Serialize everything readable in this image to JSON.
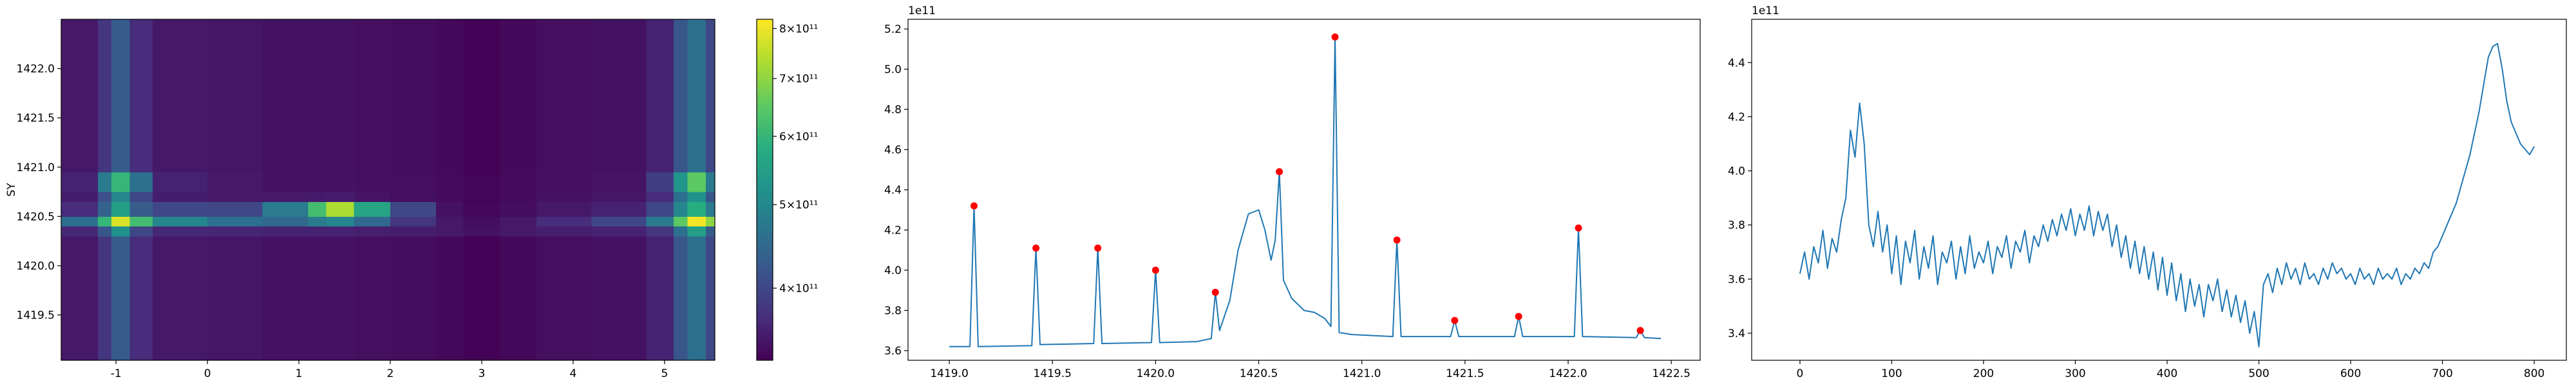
{
  "chart_data": [
    {
      "type": "heatmap",
      "ylabel": "SY",
      "colormap": "viridis",
      "color_scale": "log",
      "clim": [
        330000000000.0,
        820000000000.0
      ],
      "cticks": [
        {
          "value": 400000000000.0,
          "label": "4×10¹¹"
        },
        {
          "value": 500000000000.0,
          "label": "5×10¹¹"
        },
        {
          "value": 600000000000.0,
          "label": "6×10¹¹"
        },
        {
          "value": 700000000000.0,
          "label": "7×10¹¹"
        },
        {
          "value": 800000000000.0,
          "label": "8×10¹¹"
        }
      ],
      "xlim": [
        -1.6,
        5.55
      ],
      "xticks": [
        -1,
        0,
        1,
        2,
        3,
        4,
        5
      ],
      "ylim": [
        1419.04,
        1422.5
      ],
      "yticks": [
        {
          "value": 1419.5,
          "label": "1419.5"
        },
        {
          "value": 1420,
          "label": "1420.0"
        },
        {
          "value": 1420.5,
          "label": "1420.5"
        },
        {
          "value": 1421,
          "label": "1421.0"
        },
        {
          "value": 1421.5,
          "label": "1421.5"
        },
        {
          "value": 1422,
          "label": "1422.0"
        }
      ],
      "x_edges": [
        -1.6,
        -1.2,
        -1.05,
        -0.85,
        -0.6,
        0,
        0.6,
        1.1,
        1.3,
        1.6,
        2.0,
        2.5,
        2.8,
        3.2,
        3.6,
        4.2,
        4.8,
        5.1,
        5.25,
        5.45,
        5.55
      ],
      "y_edges": [
        1419.04,
        1419.9,
        1420.3,
        1420.4,
        1420.5,
        1420.65,
        1420.75,
        1420.95,
        1421.5,
        1422.5
      ],
      "z": [
        [
          350000000000.0,
          380000000000.0,
          430000000000.0,
          370000000000.0,
          350000000000.0,
          348000000000.0,
          345000000000.0,
          345000000000.0,
          345000000000.0,
          342000000000.0,
          340000000000.0,
          337000000000.0,
          332000000000.0,
          337000000000.0,
          342000000000.0,
          345000000000.0,
          360000000000.0,
          420000000000.0,
          460000000000.0,
          400000000000.0
        ],
        [
          350000000000.0,
          380000000000.0,
          430000000000.0,
          370000000000.0,
          350000000000.0,
          348000000000.0,
          345000000000.0,
          345000000000.0,
          345000000000.0,
          342000000000.0,
          340000000000.0,
          337000000000.0,
          332000000000.0,
          337000000000.0,
          342000000000.0,
          345000000000.0,
          360000000000.0,
          420000000000.0,
          460000000000.0,
          400000000000.0
        ],
        [
          365000000000.0,
          420000000000.0,
          520000000000.0,
          400000000000.0,
          365000000000.0,
          362000000000.0,
          360000000000.0,
          360000000000.0,
          360000000000.0,
          357000000000.0,
          355000000000.0,
          350000000000.0,
          345000000000.0,
          350000000000.0,
          356000000000.0,
          360000000000.0,
          380000000000.0,
          460000000000.0,
          550000000000.0,
          430000000000.0
        ],
        [
          460000000000.0,
          600000000000.0,
          780000000000.0,
          620000000000.0,
          500000000000.0,
          460000000000.0,
          450000000000.0,
          480000000000.0,
          500000000000.0,
          450000000000.0,
          380000000000.0,
          350000000000.0,
          340000000000.0,
          350000000000.0,
          370000000000.0,
          400000000000.0,
          480000000000.0,
          650000000000.0,
          810000000000.0,
          700000000000.0
        ],
        [
          370000000000.0,
          440000000000.0,
          550000000000.0,
          430000000000.0,
          400000000000.0,
          400000000000.0,
          480000000000.0,
          620000000000.0,
          730000000000.0,
          560000000000.0,
          400000000000.0,
          345000000000.0,
          335000000000.0,
          340000000000.0,
          350000000000.0,
          360000000000.0,
          400000000000.0,
          500000000000.0,
          580000000000.0,
          480000000000.0
        ],
        [
          355000000000.0,
          410000000000.0,
          500000000000.0,
          400000000000.0,
          355000000000.0,
          350000000000.0,
          350000000000.0,
          352000000000.0,
          355000000000.0,
          347000000000.0,
          342000000000.0,
          338000000000.0,
          333000000000.0,
          338000000000.0,
          344000000000.0,
          348000000000.0,
          370000000000.0,
          460000000000.0,
          520000000000.0,
          420000000000.0
        ],
        [
          360000000000.0,
          480000000000.0,
          600000000000.0,
          460000000000.0,
          360000000000.0,
          350000000000.0,
          346000000000.0,
          346000000000.0,
          346000000000.0,
          343000000000.0,
          341000000000.0,
          338000000000.0,
          333000000000.0,
          338000000000.0,
          343000000000.0,
          347000000000.0,
          390000000000.0,
          530000000000.0,
          650000000000.0,
          480000000000.0
        ],
        [
          350000000000.0,
          380000000000.0,
          430000000000.0,
          370000000000.0,
          350000000000.0,
          348000000000.0,
          345000000000.0,
          345000000000.0,
          345000000000.0,
          342000000000.0,
          340000000000.0,
          337000000000.0,
          332000000000.0,
          337000000000.0,
          342000000000.0,
          345000000000.0,
          360000000000.0,
          420000000000.0,
          460000000000.0,
          400000000000.0
        ],
        [
          350000000000.0,
          380000000000.0,
          430000000000.0,
          370000000000.0,
          350000000000.0,
          348000000000.0,
          345000000000.0,
          345000000000.0,
          345000000000.0,
          342000000000.0,
          340000000000.0,
          337000000000.0,
          332000000000.0,
          337000000000.0,
          342000000000.0,
          345000000000.0,
          360000000000.0,
          420000000000.0,
          460000000000.0,
          400000000000.0
        ]
      ]
    },
    {
      "type": "line",
      "y_offset_label": "1e11",
      "xlim": [
        1418.8,
        1422.64
      ],
      "xticks": [
        {
          "value": 1419,
          "label": "1419.0"
        },
        1419.5,
        {
          "value": 1420,
          "label": "1420.0"
        },
        1420.5,
        {
          "value": 1421,
          "label": "1421.0"
        },
        1421.5,
        {
          "value": 1422,
          "label": "1422.0"
        },
        1422.5
      ],
      "ylim": [
        3.552,
        5.248
      ],
      "yticks": [
        3.6,
        3.8,
        {
          "value": 4,
          "label": "4.0"
        },
        4.2,
        4.4,
        4.6,
        4.8,
        {
          "value": 5,
          "label": "5.0"
        },
        5.2
      ],
      "series": [
        {
          "color": "#1f77b4",
          "x": [
            1419.0,
            1419.1,
            1419.12,
            1419.14,
            1419.4,
            1419.42,
            1419.44,
            1419.7,
            1419.72,
            1419.74,
            1419.98,
            1420.0,
            1420.02,
            1420.2,
            1420.27,
            1420.29,
            1420.31,
            1420.36,
            1420.4,
            1420.45,
            1420.5,
            1420.53,
            1420.56,
            1420.58,
            1420.6,
            1420.62,
            1420.66,
            1420.72,
            1420.77,
            1420.82,
            1420.85,
            1420.87,
            1420.89,
            1420.95,
            1421.15,
            1421.17,
            1421.19,
            1421.43,
            1421.45,
            1421.47,
            1421.74,
            1421.76,
            1421.78,
            1422.03,
            1422.05,
            1422.07,
            1422.33,
            1422.35,
            1422.37,
            1422.45
          ],
          "values": [
            3.62,
            3.62,
            4.32,
            3.62,
            3.625,
            4.11,
            3.63,
            3.635,
            4.11,
            3.635,
            3.64,
            4.0,
            3.64,
            3.645,
            3.66,
            3.89,
            3.7,
            3.85,
            4.1,
            4.28,
            4.3,
            4.2,
            4.05,
            4.15,
            4.49,
            3.95,
            3.86,
            3.8,
            3.79,
            3.76,
            3.72,
            5.16,
            3.69,
            3.68,
            3.67,
            4.15,
            3.67,
            3.67,
            3.75,
            3.67,
            3.67,
            3.77,
            3.67,
            3.67,
            4.21,
            3.67,
            3.665,
            3.7,
            3.665,
            3.66
          ]
        },
        {
          "kind": "scatter",
          "color": "#ff0000",
          "x": [
            1419.12,
            1419.42,
            1419.72,
            1420.0,
            1420.29,
            1420.6,
            1420.87,
            1421.17,
            1421.45,
            1421.76,
            1422.05,
            1422.35
          ],
          "values": [
            4.32,
            4.11,
            4.11,
            4.0,
            3.89,
            4.49,
            5.16,
            4.15,
            3.75,
            3.77,
            4.21,
            3.7
          ]
        }
      ]
    },
    {
      "type": "line",
      "y_offset_label": "1e11",
      "xlim": [
        -52.6,
        835
      ],
      "xticks": [
        0,
        100,
        200,
        300,
        400,
        500,
        600,
        700,
        800
      ],
      "ylim": [
        3.3,
        4.56
      ],
      "yticks": [
        3.4,
        3.6,
        3.8,
        {
          "value": 4,
          "label": "4.0"
        },
        4.2,
        4.4
      ],
      "series": [
        {
          "color": "#1f77b4",
          "x": [
            0,
            5,
            10,
            15,
            20,
            25,
            30,
            35,
            40,
            45,
            50,
            55,
            60,
            65,
            70,
            75,
            80,
            85,
            90,
            95,
            100,
            105,
            110,
            115,
            120,
            125,
            130,
            135,
            140,
            145,
            150,
            155,
            160,
            165,
            170,
            175,
            180,
            185,
            190,
            195,
            200,
            205,
            210,
            215,
            220,
            225,
            230,
            235,
            240,
            245,
            250,
            255,
            260,
            265,
            270,
            275,
            280,
            285,
            290,
            295,
            300,
            305,
            310,
            315,
            320,
            325,
            330,
            335,
            340,
            345,
            350,
            355,
            360,
            365,
            370,
            375,
            380,
            385,
            390,
            395,
            400,
            405,
            410,
            415,
            420,
            425,
            430,
            435,
            440,
            445,
            450,
            455,
            460,
            465,
            470,
            475,
            480,
            485,
            490,
            495,
            500,
            505,
            510,
            515,
            520,
            525,
            530,
            535,
            540,
            545,
            550,
            555,
            560,
            565,
            570,
            575,
            580,
            585,
            590,
            595,
            600,
            605,
            610,
            615,
            620,
            625,
            630,
            635,
            640,
            645,
            650,
            655,
            660,
            665,
            670,
            675,
            680,
            685,
            690,
            695,
            700,
            705,
            710,
            715,
            720,
            725,
            730,
            735,
            740,
            745,
            750,
            755,
            760,
            765,
            770,
            775,
            780,
            785,
            790,
            795,
            800
          ],
          "values": [
            3.62,
            3.7,
            3.6,
            3.72,
            3.66,
            3.78,
            3.64,
            3.75,
            3.7,
            3.82,
            3.9,
            4.15,
            4.05,
            4.25,
            4.1,
            3.8,
            3.72,
            3.85,
            3.7,
            3.8,
            3.62,
            3.76,
            3.58,
            3.74,
            3.66,
            3.78,
            3.6,
            3.72,
            3.64,
            3.76,
            3.58,
            3.7,
            3.66,
            3.74,
            3.6,
            3.72,
            3.62,
            3.76,
            3.64,
            3.7,
            3.66,
            3.74,
            3.62,
            3.72,
            3.68,
            3.76,
            3.64,
            3.74,
            3.7,
            3.78,
            3.66,
            3.76,
            3.72,
            3.8,
            3.74,
            3.82,
            3.76,
            3.84,
            3.78,
            3.86,
            3.76,
            3.84,
            3.78,
            3.87,
            3.76,
            3.85,
            3.78,
            3.84,
            3.72,
            3.8,
            3.68,
            3.76,
            3.64,
            3.74,
            3.62,
            3.72,
            3.6,
            3.7,
            3.56,
            3.68,
            3.54,
            3.66,
            3.52,
            3.62,
            3.48,
            3.6,
            3.5,
            3.58,
            3.46,
            3.58,
            3.52,
            3.6,
            3.48,
            3.56,
            3.46,
            3.54,
            3.44,
            3.52,
            3.4,
            3.48,
            3.35,
            3.58,
            3.62,
            3.55,
            3.64,
            3.58,
            3.66,
            3.6,
            3.64,
            3.58,
            3.66,
            3.6,
            3.62,
            3.58,
            3.64,
            3.6,
            3.66,
            3.62,
            3.64,
            3.6,
            3.62,
            3.58,
            3.64,
            3.6,
            3.62,
            3.58,
            3.64,
            3.6,
            3.62,
            3.6,
            3.64,
            3.58,
            3.62,
            3.6,
            3.64,
            3.62,
            3.66,
            3.64,
            3.7,
            3.72,
            3.76,
            3.8,
            3.84,
            3.88,
            3.94,
            4.0,
            4.06,
            4.14,
            4.22,
            4.32,
            4.42,
            4.46,
            4.47,
            4.38,
            4.26,
            4.18,
            4.14,
            4.1,
            4.08,
            4.06,
            4.09
          ]
        }
      ]
    }
  ]
}
